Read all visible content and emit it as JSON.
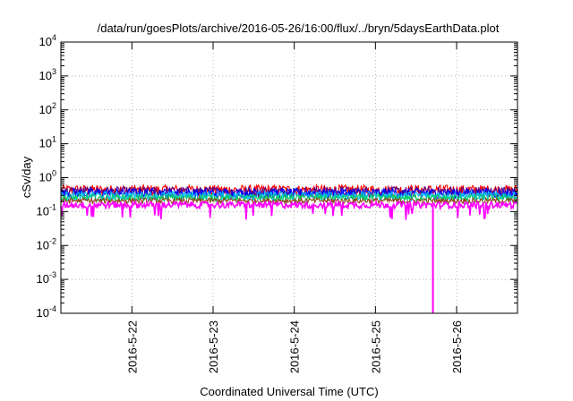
{
  "chart_data": {
    "type": "line",
    "title": "/data/run/goesPlots/archive/2016-05-26/16:00/flux/../bryn/5daysEarthData.plot",
    "xlabel": "Coordinated Universal Time (UTC)",
    "ylabel": "cSv/day",
    "y_scale": "log",
    "ylim": [
      0.0001,
      10000
    ],
    "x_range": [
      "2016-05-21 03:00",
      "2016-05-26 18:00"
    ],
    "y_ticks": [
      {
        "value": 0.0001,
        "base": "10",
        "exp": "-4"
      },
      {
        "value": 0.001,
        "base": "10",
        "exp": "-3"
      },
      {
        "value": 0.01,
        "base": "10",
        "exp": "-2"
      },
      {
        "value": 0.1,
        "base": "10",
        "exp": "-1"
      },
      {
        "value": 1,
        "base": "10",
        "exp": "0"
      },
      {
        "value": 10,
        "base": "10",
        "exp": "1"
      },
      {
        "value": 100,
        "base": "10",
        "exp": "2"
      },
      {
        "value": 1000,
        "base": "10",
        "exp": "3"
      },
      {
        "value": 10000,
        "base": "10",
        "exp": "4"
      }
    ],
    "x_ticks": [
      {
        "date": "2016-05-22 00:00",
        "label": "2016-5-22"
      },
      {
        "date": "2016-05-23 00:00",
        "label": "2016-5-23"
      },
      {
        "date": "2016-05-24 00:00",
        "label": "2016-5-24"
      },
      {
        "date": "2016-05-25 00:00",
        "label": "2016-5-25"
      },
      {
        "date": "2016-05-26 00:00",
        "label": "2016-5-26"
      }
    ],
    "grid": true,
    "legend": "none",
    "series": [
      {
        "color": "#ff0000",
        "base": 0.44,
        "spread": 0.17
      },
      {
        "color": "#5a0080",
        "base": 0.4,
        "spread": 0.14
      },
      {
        "color": "#0000ff",
        "base": 0.36,
        "spread": 0.12
      },
      {
        "color": "#00bfff",
        "base": 0.3,
        "spread": 0.09
      },
      {
        "color": "#00cc66",
        "base": 0.26,
        "spread": 0.06
      },
      {
        "color": "#8b4513",
        "base": 0.21,
        "spread": 0.04
      },
      {
        "color": "#ff00ff",
        "base": 0.16,
        "spread": 0.035
      }
    ],
    "annotations": [
      {
        "type": "drop",
        "color": "#ff00ff",
        "date": "2016-05-25 17:00",
        "min": 0.0001
      }
    ]
  }
}
